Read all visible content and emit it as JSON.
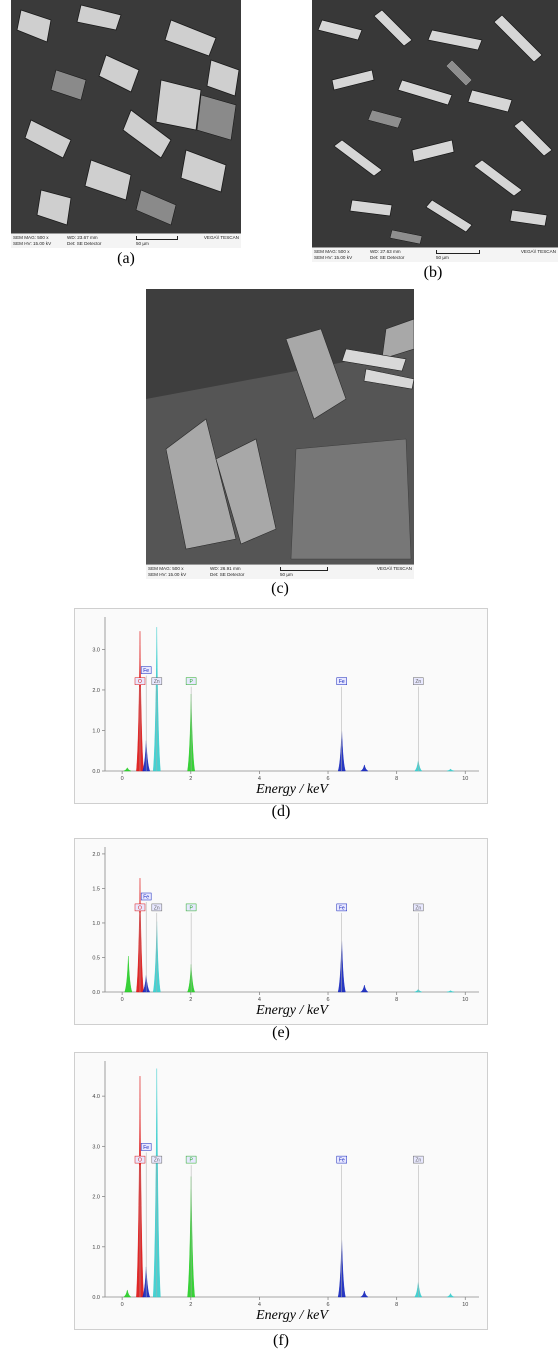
{
  "sem_images": [
    {
      "id": "a",
      "caption": "(a)",
      "mag": "SEM MAG: 500 x",
      "wd": "WD: 23.67 mm",
      "hv": "SEM HV: 15.00 kV",
      "det": "Det: SE Detector",
      "scale": "50 µm",
      "brand": "VEGA\\\\ TESCAN"
    },
    {
      "id": "b",
      "caption": "(b)",
      "mag": "SEM MAG: 500 x",
      "wd": "WD: 27.63 mm",
      "hv": "SEM HV: 15.00 kV",
      "det": "Det: SE Detector",
      "scale": "50 µm",
      "brand": "VEGA\\\\ TESCAN"
    },
    {
      "id": "c",
      "caption": "(c)",
      "mag": "SEM MAG: 500 x",
      "wd": "WD: 26.91 mm",
      "hv": "SEM HV: 15.00 kV",
      "det": "Det: SE Detector",
      "scale": "50 µm",
      "brand": "VEGA\\\\ TESCAN"
    }
  ],
  "chart_data": [
    {
      "type": "bar",
      "caption": "(d)",
      "xlabel": "Energy / keV",
      "xlim": [
        -0.5,
        10.4
      ],
      "ylim": [
        0,
        3.8
      ],
      "xticks": [
        "0",
        "2",
        "4",
        "6",
        "8",
        "10"
      ],
      "yticks": [
        "0.0",
        "1.0",
        "2.0",
        "3.0"
      ],
      "element_labels": [
        "O",
        "Fe",
        "Zn",
        "P",
        "Fe",
        "Zn"
      ],
      "peaks": [
        {
          "x": 0.15,
          "h": 0.08,
          "color": "#22cc22"
        },
        {
          "x": 0.52,
          "h": 3.45,
          "color": "#dd1111"
        },
        {
          "x": 0.7,
          "h": 0.75,
          "color": "#1122bb"
        },
        {
          "x": 1.01,
          "h": 3.55,
          "color": "#33cccc"
        },
        {
          "x": 2.01,
          "h": 1.9,
          "color": "#22cc22"
        },
        {
          "x": 6.4,
          "h": 1.0,
          "color": "#1122bb"
        },
        {
          "x": 7.06,
          "h": 0.15,
          "color": "#1122bb"
        },
        {
          "x": 8.63,
          "h": 0.26,
          "color": "#33cccc"
        },
        {
          "x": 9.57,
          "h": 0.05,
          "color": "#33cccc"
        }
      ]
    },
    {
      "type": "bar",
      "caption": "(e)",
      "xlabel": "Energy / keV",
      "xlim": [
        -0.5,
        10.4
      ],
      "ylim": [
        0,
        2.1
      ],
      "xticks": [
        "0",
        "2",
        "4",
        "6",
        "8",
        "10"
      ],
      "yticks": [
        "0.0",
        "0.5",
        "1.0",
        "1.5",
        "2.0"
      ],
      "element_labels": [
        "O",
        "Fe",
        "Zn",
        "P",
        "Fe",
        "Zn"
      ],
      "peaks": [
        {
          "x": 0.18,
          "h": 0.52,
          "color": "#22cc22"
        },
        {
          "x": 0.52,
          "h": 1.65,
          "color": "#dd1111"
        },
        {
          "x": 0.7,
          "h": 0.24,
          "color": "#1122bb"
        },
        {
          "x": 1.01,
          "h": 1.02,
          "color": "#33cccc"
        },
        {
          "x": 2.01,
          "h": 0.4,
          "color": "#22cc22"
        },
        {
          "x": 6.4,
          "h": 0.75,
          "color": "#1122bb"
        },
        {
          "x": 7.06,
          "h": 0.1,
          "color": "#1122bb"
        },
        {
          "x": 8.63,
          "h": 0.04,
          "color": "#33cccc"
        },
        {
          "x": 9.57,
          "h": 0.02,
          "color": "#33cccc"
        }
      ]
    },
    {
      "type": "bar",
      "caption": "(f)",
      "xlabel": "Energy / keV",
      "xlim": [
        -0.5,
        10.4
      ],
      "ylim": [
        0,
        4.7
      ],
      "xticks": [
        "0",
        "2",
        "4",
        "6",
        "8",
        "10"
      ],
      "yticks": [
        "0.0",
        "1.0",
        "2.0",
        "3.0",
        "4.0"
      ],
      "element_labels": [
        "O",
        "Fe",
        "Zn",
        "P",
        "Fe",
        "Zn"
      ],
      "peaks": [
        {
          "x": 0.15,
          "h": 0.14,
          "color": "#22cc22"
        },
        {
          "x": 0.52,
          "h": 4.4,
          "color": "#dd1111"
        },
        {
          "x": 0.7,
          "h": 0.6,
          "color": "#1122bb"
        },
        {
          "x": 1.01,
          "h": 4.55,
          "color": "#33cccc"
        },
        {
          "x": 2.01,
          "h": 2.4,
          "color": "#22cc22"
        },
        {
          "x": 6.4,
          "h": 1.15,
          "color": "#1122bb"
        },
        {
          "x": 7.06,
          "h": 0.12,
          "color": "#1122bb"
        },
        {
          "x": 8.63,
          "h": 0.3,
          "color": "#33cccc"
        },
        {
          "x": 9.57,
          "h": 0.07,
          "color": "#33cccc"
        }
      ]
    }
  ]
}
